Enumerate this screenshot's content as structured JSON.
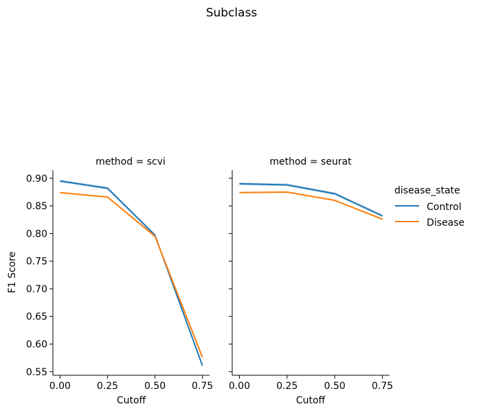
{
  "chart_data": {
    "type": "line",
    "title": "Subclass",
    "xlabel": "Cutoff",
    "ylabel": "F1 Score",
    "x": [
      0.0,
      0.25,
      0.5,
      0.75
    ],
    "xticks": [
      "0.00",
      "0.25",
      "0.50",
      "0.75"
    ],
    "yticks": [
      "0.55",
      "0.60",
      "0.65",
      "0.70",
      "0.75",
      "0.80",
      "0.85",
      "0.90"
    ],
    "xlim": [
      -0.0375,
      0.7875
    ],
    "ylim": [
      0.5435,
      0.9147
    ],
    "legend": {
      "title": "disease_state",
      "placement": "right",
      "entries": [
        {
          "name": "Control",
          "color": "#1f77b4"
        },
        {
          "name": "Disease",
          "color": "#ff7f0e"
        }
      ]
    },
    "panels": [
      {
        "title": "method = scvi",
        "series": [
          {
            "name": "Control",
            "values": [
              0.895,
              0.882,
              0.797,
              0.561
            ],
            "band": 0.0025
          },
          {
            "name": "Disease",
            "values": [
              0.874,
              0.866,
              0.795,
              0.576
            ],
            "band": 0.0015
          }
        ]
      },
      {
        "title": "method = seurat",
        "series": [
          {
            "name": "Control",
            "values": [
              0.89,
              0.888,
              0.872,
              0.832
            ],
            "band": 0.0025
          },
          {
            "name": "Disease",
            "values": [
              0.874,
              0.875,
              0.86,
              0.826
            ],
            "band": 0.0015
          }
        ]
      }
    ]
  }
}
